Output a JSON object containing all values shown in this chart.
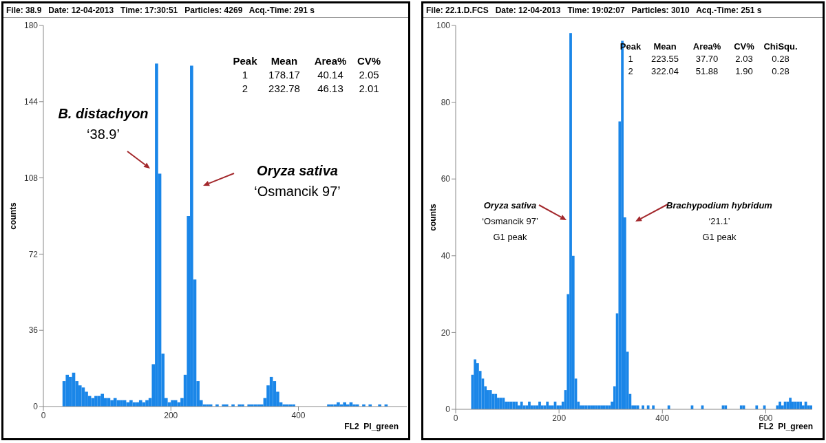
{
  "chart_data": [
    {
      "type": "histogram",
      "title": "File: 38.9   Date: 12-04-2013   Time: 17:30:51   Particles: 4269   Acq.-Time: 291 s",
      "xlabel": "FL2  PI_green",
      "ylabel": "counts",
      "color": "#1a86e8",
      "bins": [
        30,
        35,
        40,
        45,
        50,
        55,
        60,
        65,
        70,
        75,
        80,
        85,
        90,
        95,
        100,
        105,
        110,
        115,
        120,
        125,
        130,
        135,
        140,
        145,
        150,
        155,
        160,
        165,
        170,
        175,
        180,
        185,
        190,
        195,
        200,
        205,
        210,
        215,
        220,
        225,
        230,
        235,
        240,
        245,
        250,
        255,
        260,
        265,
        270,
        275,
        280,
        285,
        290,
        295,
        300,
        305,
        310,
        315,
        320,
        325,
        330,
        335,
        340,
        345,
        350,
        355,
        360,
        365,
        370,
        375,
        380,
        385,
        390,
        395,
        400,
        405,
        410,
        415,
        420,
        425,
        430,
        435,
        440,
        445,
        450,
        455,
        460,
        465,
        470,
        475,
        480,
        485,
        490,
        495,
        500,
        505,
        510,
        515,
        520,
        525,
        530,
        535,
        540,
        545,
        550,
        555,
        560,
        565,
        570
      ],
      "values": [
        12,
        15,
        14,
        16,
        12,
        10,
        9,
        7,
        5,
        4,
        5,
        5,
        6,
        4,
        4,
        3,
        4,
        3,
        3,
        3,
        2,
        3,
        2,
        2,
        3,
        2,
        3,
        4,
        20,
        162,
        110,
        25,
        4,
        2,
        3,
        3,
        2,
        4,
        15,
        90,
        161,
        60,
        12,
        3,
        1,
        1,
        1,
        0,
        1,
        0,
        1,
        1,
        0,
        1,
        0,
        1,
        1,
        0,
        1,
        1,
        1,
        1,
        1,
        4,
        10,
        14,
        12,
        7,
        2,
        1,
        1,
        1,
        1,
        0,
        0,
        0,
        0,
        0,
        0,
        0,
        0,
        0,
        0,
        1,
        1,
        1,
        2,
        1,
        2,
        1,
        2,
        1,
        1,
        0,
        1,
        0,
        1,
        0,
        0,
        1,
        0,
        1,
        0,
        0,
        0,
        0,
        0,
        0
      ],
      "xlim": [
        0,
        570
      ],
      "xticks": [
        0,
        200,
        400
      ],
      "ylim": [
        0,
        180
      ],
      "yticks": [
        0,
        36,
        72,
        108,
        144,
        180
      ],
      "annotations": [
        "Peak",
        "Mean",
        "Area%",
        "CV%",
        "1",
        "178.17",
        "40.14",
        "2.05",
        "2",
        "232.78",
        "46.13",
        "2.01",
        "B. distachyon",
        "‘38.9’",
        "Oryza sativa",
        "‘Osmancik 97’"
      ]
    },
    {
      "type": "histogram",
      "title": "File: 22.1.D.FCS   Date: 12-04-2013   Time: 19:02:07   Particles: 3010   Acq.-Time: 251 s",
      "xlabel": "FL2  PI_green",
      "ylabel": "counts",
      "color": "#1a86e8",
      "bins": [
        30,
        35,
        40,
        45,
        50,
        55,
        60,
        65,
        70,
        75,
        80,
        85,
        90,
        95,
        100,
        105,
        110,
        115,
        120,
        125,
        130,
        135,
        140,
        145,
        150,
        155,
        160,
        165,
        170,
        175,
        180,
        185,
        190,
        195,
        200,
        205,
        210,
        215,
        220,
        225,
        230,
        235,
        240,
        245,
        250,
        255,
        260,
        265,
        270,
        275,
        280,
        285,
        290,
        295,
        300,
        305,
        310,
        315,
        320,
        325,
        330,
        335,
        340,
        345,
        350,
        355,
        360,
        365,
        370,
        375,
        380,
        385,
        390,
        395,
        400,
        405,
        410,
        415,
        420,
        425,
        430,
        435,
        440,
        445,
        450,
        455,
        460,
        465,
        470,
        475,
        480,
        485,
        490,
        495,
        500,
        505,
        510,
        515,
        520,
        525,
        530,
        535,
        540,
        545,
        550,
        555,
        560,
        565,
        570,
        575,
        580,
        585,
        590,
        595,
        600,
        605,
        610,
        615,
        620,
        625,
        630,
        635,
        640,
        645,
        650,
        655,
        660,
        665,
        670,
        675,
        680,
        685,
        690
      ],
      "values": [
        9,
        13,
        12,
        10,
        8,
        6,
        5,
        5,
        4,
        4,
        3,
        3,
        3,
        2,
        2,
        2,
        2,
        2,
        1,
        2,
        1,
        1,
        2,
        1,
        1,
        1,
        2,
        1,
        1,
        2,
        1,
        1,
        2,
        1,
        1,
        2,
        5,
        30,
        98,
        40,
        8,
        2,
        1,
        1,
        1,
        1,
        1,
        1,
        1,
        1,
        1,
        1,
        1,
        1,
        2,
        6,
        25,
        75,
        96,
        50,
        15,
        4,
        1,
        1,
        1,
        0,
        1,
        0,
        1,
        0,
        1,
        0,
        0,
        0,
        0,
        0,
        1,
        0,
        0,
        0,
        0,
        0,
        0,
        0,
        0,
        1,
        0,
        0,
        0,
        1,
        0,
        0,
        0,
        0,
        0,
        0,
        0,
        1,
        1,
        0,
        0,
        0,
        0,
        0,
        1,
        1,
        0,
        0,
        0,
        0,
        1,
        0,
        0,
        1,
        0,
        0,
        0,
        0,
        1,
        2,
        1,
        2,
        2,
        3,
        2,
        2,
        2,
        2,
        1,
        2,
        1,
        1
      ],
      "xlim": [
        0,
        690
      ],
      "xticks": [
        0,
        200,
        400,
        600
      ],
      "ylim": [
        0,
        100
      ],
      "yticks": [
        0,
        20,
        40,
        60,
        80,
        100
      ],
      "annotations": [
        "Peak",
        "Mean",
        "Area%",
        "CV%",
        "ChiSqu.",
        "1",
        "223.55",
        "37.70",
        "2.03",
        "0.28",
        "2",
        "322.04",
        "51.88",
        "1.90",
        "0.28",
        "Oryza sativa",
        "‘Osmancik 97’",
        "G1 peak",
        "Brachypodium hybridum",
        "‘21.1’",
        "G1 peak"
      ]
    }
  ]
}
